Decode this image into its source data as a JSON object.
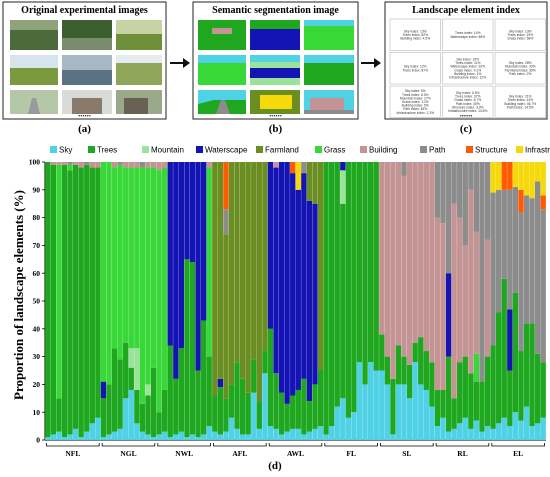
{
  "panels": {
    "a": {
      "title": "Original experimental images",
      "label": "(a)",
      "dots": "••••••"
    },
    "b": {
      "title": "Semantic segmentation image",
      "label": "(b)",
      "dots": "••••••"
    },
    "c": {
      "title": "Landscape element index",
      "label": "(c)",
      "dots": "••••••",
      "cells": [
        [
          "Sky index: 13%",
          "Trees index: 82%",
          "Building index: 4.5%"
        ],
        [
          "Trees index: 14%",
          "Waterscape index: 86%"
        ],
        [
          "Sky index: 13%",
          "Trees index: 19%",
          "Grass index: 68%"
        ],
        [
          "Sky index: 12%",
          "Trees index: 87%"
        ],
        [
          "Sky index: 19%",
          "Trees index: 11%",
          "Waterscape index: 32%",
          "Grass index: 4.1%",
          "Building index: 1%",
          "Infrastructure index: 12%"
        ],
        [
          "Sky index: 28%",
          "Mountain index: 33%",
          "Farmland index: 39%",
          "Path index: 2%"
        ],
        [
          "Sky index: 9%",
          "Trees index: 6.3%",
          "Mountain index: 17%",
          "Grass index: 1.1%",
          "Building index: 5%",
          "Path index: 46%",
          "Infrastructure index: 1.3%"
        ],
        [
          "Sky index: 6.5%",
          "Trees index: 37%",
          "Grass index: 6.7%",
          "Path index: 30%",
          "Structure index: 3.3%",
          "Infrastructure index: 14.5%"
        ],
        [
          "Sky index: 21%",
          "Trees index: 14%",
          "Building index: 46.7%",
          "Path index: 14.5%"
        ]
      ]
    },
    "d": {
      "label": "(d)"
    }
  },
  "colors": {
    "Sky": "#4fd1e6",
    "Trees": "#1fa81f",
    "Mountain": "#9be39b",
    "Waterscape": "#1414b4",
    "Farmland": "#6b8e23",
    "Grass": "#39d839",
    "Building": "#c49494",
    "Path": "#8c8c8c",
    "Structure": "#ff5a00",
    "Infrastructure": "#f5d90a"
  },
  "chart_data": {
    "type": "bar",
    "stacked": true,
    "ylabel": "Proportion of landscape elements (%)",
    "ylim": [
      0,
      100
    ],
    "yticks": [
      0,
      10,
      20,
      30,
      40,
      50,
      60,
      70,
      80,
      90,
      100
    ],
    "legend": [
      "Sky",
      "Trees",
      "Mountain",
      "Waterscape",
      "Farmland",
      "Grass",
      "Building",
      "Path",
      "Structure",
      "Infrastructure"
    ],
    "legend_position": "top",
    "groups": [
      "NFL",
      "NGL",
      "NWL",
      "AFL",
      "AWL",
      "FL",
      "SL",
      "RL",
      "EL"
    ],
    "bars_per_group": 10,
    "bars": [
      {
        "g": "NFL",
        "s": {
          "Trees": 99,
          "Sky": 1
        }
      },
      {
        "g": "NFL",
        "s": {
          "Sky": 2,
          "Trees": 97,
          "Building": 1
        }
      },
      {
        "g": "NFL",
        "s": {
          "Sky": 3,
          "Trees": 12,
          "Grass": 84,
          "Building": 1
        }
      },
      {
        "g": "NFL",
        "s": {
          "Sky": 1,
          "Trees": 98,
          "Building": 1
        }
      },
      {
        "g": "NFL",
        "s": {
          "Sky": 2,
          "Trees": 95,
          "Grass": 2,
          "Path": 1
        }
      },
      {
        "g": "NFL",
        "s": {
          "Sky": 4,
          "Trees": 95,
          "Building": 1
        }
      },
      {
        "g": "NFL",
        "s": {
          "Sky": 1,
          "Trees": 97,
          "Building": 2
        }
      },
      {
        "g": "NFL",
        "s": {
          "Sky": 3,
          "Trees": 96,
          "Path": 1
        }
      },
      {
        "g": "NFL",
        "s": {
          "Sky": 6,
          "Trees": 92,
          "Building": 2
        }
      },
      {
        "g": "NFL",
        "s": {
          "Sky": 8,
          "Trees": 90,
          "Building": 2
        }
      },
      {
        "g": "NGL",
        "s": {
          "Sky": 1,
          "Trees": 14,
          "Waterscape": 6,
          "Grass": 79
        }
      },
      {
        "g": "NGL",
        "s": {
          "Sky": 2,
          "Trees": 18,
          "Grass": 80
        }
      },
      {
        "g": "NGL",
        "s": {
          "Sky": 3,
          "Trees": 30,
          "Grass": 65,
          "Building": 2
        }
      },
      {
        "g": "NGL",
        "s": {
          "Sky": 4,
          "Trees": 25,
          "Grass": 70,
          "Path": 1
        }
      },
      {
        "g": "NGL",
        "s": {
          "Sky": 15,
          "Trees": 20,
          "Grass": 63,
          "Building": 2
        }
      },
      {
        "g": "NGL",
        "s": {
          "Sky": 18,
          "Trees": 8,
          "Mountain": 7,
          "Grass": 65,
          "Building": 2
        }
      },
      {
        "g": "NGL",
        "s": {
          "Sky": 6,
          "Trees": 12,
          "Mountain": 15,
          "Grass": 65,
          "Building": 2
        }
      },
      {
        "g": "NGL",
        "s": {
          "Sky": 3,
          "Trees": 10,
          "Grass": 85,
          "Path": 2
        }
      },
      {
        "g": "NGL",
        "s": {
          "Sky": 2,
          "Trees": 14,
          "Mountain": 4,
          "Grass": 78,
          "Building": 2
        }
      },
      {
        "g": "NGL",
        "s": {
          "Sky": 1,
          "Trees": 25,
          "Grass": 72,
          "Building": 2
        }
      },
      {
        "g": "NWL",
        "s": {
          "Sky": 2,
          "Trees": 8,
          "Grass": 87,
          "Building": 3
        }
      },
      {
        "g": "NWL",
        "s": {
          "Sky": 3,
          "Trees": 15,
          "Grass": 80,
          "Building": 2
        }
      },
      {
        "g": "NWL",
        "s": {
          "Sky": 1,
          "Trees": 33,
          "Waterscape": 66
        }
      },
      {
        "g": "NWL",
        "s": {
          "Sky": 2,
          "Trees": 20,
          "Waterscape": 78
        }
      },
      {
        "g": "NWL",
        "s": {
          "Sky": 3,
          "Trees": 30,
          "Waterscape": 67
        }
      },
      {
        "g": "NWL",
        "s": {
          "Sky": 1,
          "Trees": 64,
          "Waterscape": 35
        }
      },
      {
        "g": "NWL",
        "s": {
          "Sky": 2,
          "Trees": 62,
          "Waterscape": 36
        }
      },
      {
        "g": "NWL",
        "s": {
          "Sky": 1,
          "Trees": 24,
          "Waterscape": 75
        }
      },
      {
        "g": "NWL",
        "s": {
          "Sky": 2,
          "Trees": 41,
          "Waterscape": 57
        }
      },
      {
        "g": "NWL",
        "s": {
          "Sky": 5,
          "Trees": 25,
          "Grass": 68,
          "Building": 2
        }
      },
      {
        "g": "AFL",
        "s": {
          "Sky": 3,
          "Trees": 13,
          "Farmland": 84
        }
      },
      {
        "g": "AFL",
        "s": {
          "Sky": 2,
          "Trees": 17,
          "Waterscape": 3,
          "Farmland": 78
        }
      },
      {
        "g": "AFL",
        "s": {
          "Sky": 3,
          "Trees": 12,
          "Farmland": 59,
          "Path": 9,
          "Structure": 17
        }
      },
      {
        "g": "AFL",
        "s": {
          "Sky": 8,
          "Trees": 12,
          "Farmland": 80
        }
      },
      {
        "g": "AFL",
        "s": {
          "Sky": 4,
          "Trees": 24,
          "Farmland": 72
        }
      },
      {
        "g": "AFL",
        "s": {
          "Sky": 2,
          "Trees": 20,
          "Farmland": 78
        }
      },
      {
        "g": "AFL",
        "s": {
          "Sky": 2,
          "Trees": 15,
          "Farmland": 83
        }
      },
      {
        "g": "AFL",
        "s": {
          "Sky": 17,
          "Trees": 12,
          "Farmland": 71
        }
      },
      {
        "g": "AFL",
        "s": {
          "Sky": 4,
          "Trees": 10,
          "Farmland": 86
        }
      },
      {
        "g": "AFL",
        "s": {
          "Sky": 24,
          "Trees": 8,
          "Farmland": 68
        }
      },
      {
        "g": "AWL",
        "s": {
          "Sky": 5,
          "Trees": 35,
          "Waterscape": 60
        }
      },
      {
        "g": "AWL",
        "s": {
          "Sky": 4,
          "Trees": 20,
          "Waterscape": 74,
          "Building": 2
        }
      },
      {
        "g": "AWL",
        "s": {
          "Sky": 2,
          "Trees": 15,
          "Waterscape": 83
        }
      },
      {
        "g": "AWL",
        "s": {
          "Sky": 3,
          "Trees": 10,
          "Waterscape": 87
        }
      },
      {
        "g": "AWL",
        "s": {
          "Sky": 4,
          "Trees": 12,
          "Waterscape": 80,
          "Structure": 4
        }
      },
      {
        "g": "AWL",
        "s": {
          "Sky": 4,
          "Trees": 14,
          "Waterscape": 72,
          "Infrastructure": 10
        }
      },
      {
        "g": "AWL",
        "s": {
          "Sky": 2,
          "Trees": 20,
          "Waterscape": 74,
          "Path": 4
        }
      },
      {
        "g": "AWL",
        "s": {
          "Sky": 3,
          "Trees": 11,
          "Waterscape": 72,
          "Farmland": 14
        }
      },
      {
        "g": "AWL",
        "s": {
          "Sky": 4,
          "Trees": 16,
          "Waterscape": 65,
          "Farmland": 15
        }
      },
      {
        "g": "AWL",
        "s": {
          "Sky": 5,
          "Trees": 20,
          "Farmland": 75
        }
      },
      {
        "g": "FL",
        "s": {
          "Sky": 2,
          "Trees": 98
        }
      },
      {
        "g": "FL",
        "s": {
          "Sky": 5,
          "Trees": 95
        }
      },
      {
        "g": "FL",
        "s": {
          "Sky": 12,
          "Trees": 88
        }
      },
      {
        "g": "FL",
        "s": {
          "Sky": 15,
          "Trees": 70,
          "Mountain": 12,
          "Waterscape": 3
        }
      },
      {
        "g": "FL",
        "s": {
          "Sky": 8,
          "Trees": 92
        }
      },
      {
        "g": "FL",
        "s": {
          "Sky": 10,
          "Trees": 90
        }
      },
      {
        "g": "FL",
        "s": {
          "Sky": 28,
          "Trees": 72
        }
      },
      {
        "g": "FL",
        "s": {
          "Sky": 20,
          "Trees": 80
        }
      },
      {
        "g": "FL",
        "s": {
          "Sky": 28,
          "Trees": 72
        }
      },
      {
        "g": "FL",
        "s": {
          "Sky": 25,
          "Trees": 75
        }
      },
      {
        "g": "SL",
        "s": {
          "Sky": 25,
          "Trees": 13,
          "Building": 62
        }
      },
      {
        "g": "SL",
        "s": {
          "Sky": 20,
          "Trees": 10,
          "Building": 70
        }
      },
      {
        "g": "SL",
        "s": {
          "Sky": 2,
          "Trees": 20,
          "Building": 78
        }
      },
      {
        "g": "SL",
        "s": {
          "Sky": 20,
          "Trees": 14,
          "Building": 66
        }
      },
      {
        "g": "SL",
        "s": {
          "Sky": 20,
          "Trees": 10,
          "Path": 5,
          "Building": 65
        }
      },
      {
        "g": "SL",
        "s": {
          "Sky": 15,
          "Trees": 12,
          "Building": 73
        }
      },
      {
        "g": "SL",
        "s": {
          "Sky": 28,
          "Trees": 7,
          "Building": 65
        }
      },
      {
        "g": "SL",
        "s": {
          "Sky": 20,
          "Trees": 17,
          "Building": 63
        }
      },
      {
        "g": "SL",
        "s": {
          "Sky": 18,
          "Trees": 14,
          "Building": 68
        }
      },
      {
        "g": "SL",
        "s": {
          "Sky": 12,
          "Trees": 16,
          "Building": 72
        }
      },
      {
        "g": "RL",
        "s": {
          "Sky": 5,
          "Trees": 13,
          "Building": 62,
          "Path": 20
        }
      },
      {
        "g": "RL",
        "s": {
          "Sky": 8,
          "Trees": 10,
          "Building": 60,
          "Path": 22
        }
      },
      {
        "g": "RL",
        "s": {
          "Sky": 3,
          "Trees": 27,
          "Waterscape": 30,
          "Path": 40
        }
      },
      {
        "g": "RL",
        "s": {
          "Sky": 4,
          "Trees": 11,
          "Building": 70,
          "Path": 15
        }
      },
      {
        "g": "RL",
        "s": {
          "Sky": 6,
          "Trees": 22,
          "Building": 52,
          "Path": 20
        }
      },
      {
        "g": "RL",
        "s": {
          "Sky": 8,
          "Trees": 22,
          "Building": 40,
          "Path": 30
        }
      },
      {
        "g": "RL",
        "s": {
          "Sky": 4,
          "Trees": 20,
          "Building": 66,
          "Path": 10
        }
      },
      {
        "g": "RL",
        "s": {
          "Sky": 7,
          "Trees": 14,
          "Grass": 10,
          "Building": 44,
          "Path": 25
        }
      },
      {
        "g": "RL",
        "s": {
          "Sky": 3,
          "Trees": 18,
          "Path": 79
        }
      },
      {
        "g": "RL",
        "s": {
          "Sky": 5,
          "Trees": 25,
          "Building": 42,
          "Path": 28
        }
      },
      {
        "g": "EL",
        "s": {
          "Sky": 4,
          "Trees": 30,
          "Path": 55,
          "Infrastructure": 11
        }
      },
      {
        "g": "EL",
        "s": {
          "Sky": 6,
          "Trees": 40,
          "Path": 44,
          "Infrastructure": 10
        }
      },
      {
        "g": "EL",
        "s": {
          "Sky": 8,
          "Trees": 50,
          "Path": 32,
          "Structure": 10
        }
      },
      {
        "g": "EL",
        "s": {
          "Sky": 5,
          "Trees": 20,
          "Waterscape": 22,
          "Path": 43,
          "Structure": 10
        }
      },
      {
        "g": "EL",
        "s": {
          "Sky": 10,
          "Trees": 43,
          "Path": 38,
          "Infrastructure": 9
        }
      },
      {
        "g": "EL",
        "s": {
          "Sky": 7,
          "Trees": 25,
          "Path": 50,
          "Structure": 8,
          "Infrastructure": 10
        }
      },
      {
        "g": "EL",
        "s": {
          "Sky": 12,
          "Trees": 30,
          "Path": 46,
          "Infrastructure": 12
        }
      },
      {
        "g": "EL",
        "s": {
          "Sky": 5,
          "Trees": 37,
          "Path": 45,
          "Infrastructure": 13
        }
      },
      {
        "g": "EL",
        "s": {
          "Sky": 6,
          "Trees": 25,
          "Path": 62,
          "Infrastructure": 7
        }
      },
      {
        "g": "EL",
        "s": {
          "Sky": 8,
          "Trees": 20,
          "Path": 55,
          "Structure": 5,
          "Infrastructure": 12
        }
      }
    ]
  }
}
